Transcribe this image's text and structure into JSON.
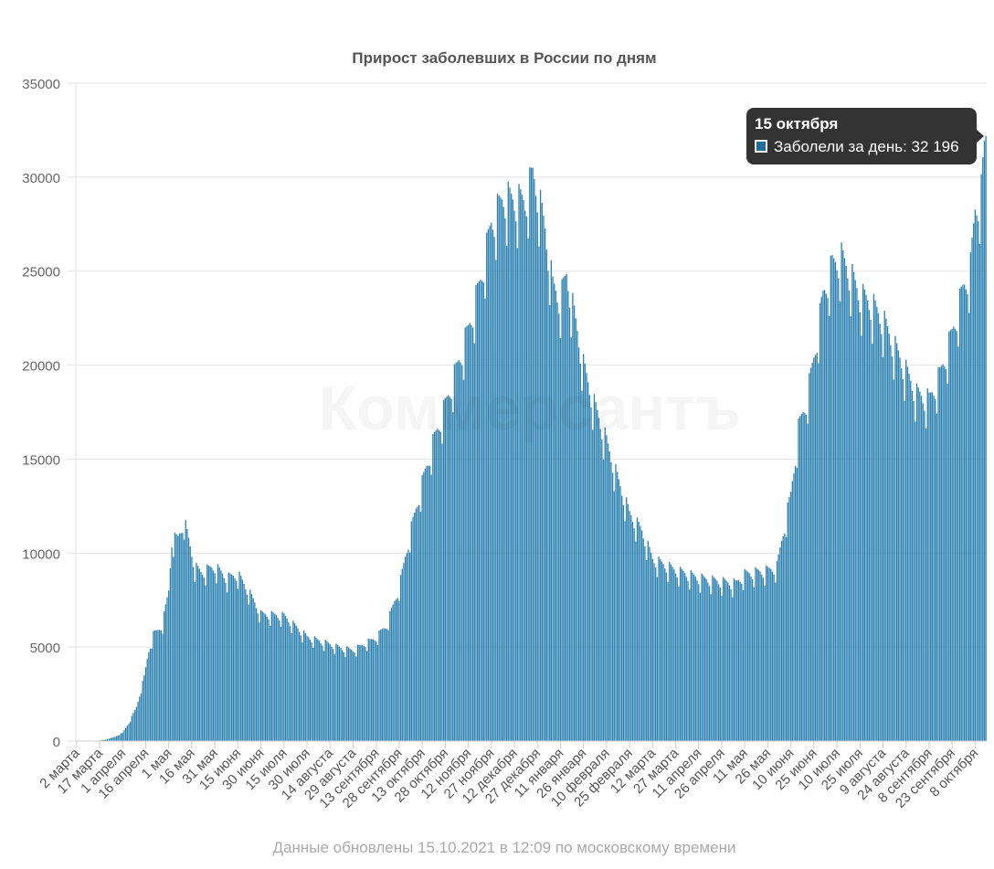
{
  "chart_data": {
    "type": "bar",
    "title": "Прирост заболевших в России по дням",
    "series": [
      {
        "name": "Заболели за день"
      }
    ],
    "ylim": [
      0,
      35000
    ],
    "yticks": [
      0,
      5000,
      10000,
      15000,
      20000,
      25000,
      30000,
      35000
    ],
    "grid": true,
    "bar_color": "#2a80b0",
    "xticklabels": [
      "2 марта",
      "17 марта",
      "1 апреля",
      "16 апреля",
      "1 мая",
      "16 мая",
      "31 мая",
      "15 июня",
      "30 июня",
      "15 июля",
      "30 июля",
      "14 августа",
      "29 августа",
      "13 сентября",
      "28 сентября",
      "13 октября",
      "28 октября",
      "12 ноября",
      "27 ноября",
      "12 декабря",
      "27 декабря",
      "11 января",
      "26 января",
      "10 февраля",
      "25 февраля",
      "12 марта",
      "27 марта",
      "11 апреля",
      "26 апреля",
      "11 мая",
      "26 мая",
      "10 июня",
      "25 июня",
      "10 июля",
      "25 июля",
      "9 августа",
      "24 августа",
      "8 сентября",
      "23 сентября",
      "8 октября"
    ],
    "x_start": "2020-03-02",
    "x_end": "2021-10-15",
    "anchors": [
      [
        "2020-03-02",
        3
      ],
      [
        "2020-03-15",
        6
      ],
      [
        "2020-03-20",
        60
      ],
      [
        "2020-03-27",
        220
      ],
      [
        "2020-04-01",
        440
      ],
      [
        "2020-04-05",
        950
      ],
      [
        "2020-04-10",
        1800
      ],
      [
        "2020-04-15",
        3390
      ],
      [
        "2020-04-18",
        4780
      ],
      [
        "2020-04-21",
        5640
      ],
      [
        "2020-04-24",
        5850
      ],
      [
        "2020-04-27",
        6200
      ],
      [
        "2020-05-01",
        7930
      ],
      [
        "2020-05-03",
        10630
      ],
      [
        "2020-05-07",
        10700
      ],
      [
        "2020-05-11",
        11650
      ],
      [
        "2020-05-14",
        10600
      ],
      [
        "2020-05-18",
        9200
      ],
      [
        "2020-05-22",
        8900
      ],
      [
        "2020-05-31",
        9200
      ],
      [
        "2020-06-08",
        8600
      ],
      [
        "2020-06-15",
        8800
      ],
      [
        "2020-06-22",
        7900
      ],
      [
        "2020-06-30",
        6700
      ],
      [
        "2020-07-15",
        6600
      ],
      [
        "2020-07-30",
        5500
      ],
      [
        "2020-08-14",
        5100
      ],
      [
        "2020-08-21",
        4900
      ],
      [
        "2020-08-29",
        4800
      ],
      [
        "2020-09-05",
        5100
      ],
      [
        "2020-09-13",
        5450
      ],
      [
        "2020-09-20",
        6150
      ],
      [
        "2020-09-28",
        8100
      ],
      [
        "2020-10-05",
        10900
      ],
      [
        "2020-10-13",
        13600
      ],
      [
        "2020-10-20",
        15700
      ],
      [
        "2020-10-28",
        17700
      ],
      [
        "2020-11-05",
        19800
      ],
      [
        "2020-11-12",
        21700
      ],
      [
        "2020-11-20",
        24300
      ],
      [
        "2020-11-27",
        27300
      ],
      [
        "2020-12-05",
        28700
      ],
      [
        "2020-12-12",
        28500
      ],
      [
        "2020-12-19",
        28500
      ],
      [
        "2020-12-24",
        29900
      ],
      [
        "2020-12-27",
        29000
      ],
      [
        "2021-01-01",
        27000
      ],
      [
        "2021-01-06",
        24000
      ],
      [
        "2021-01-11",
        23300
      ],
      [
        "2021-01-15",
        24600
      ],
      [
        "2021-01-20",
        22500
      ],
      [
        "2021-01-26",
        19800
      ],
      [
        "2021-02-01",
        18000
      ],
      [
        "2021-02-10",
        15800
      ],
      [
        "2021-02-17",
        13900
      ],
      [
        "2021-02-25",
        12000
      ],
      [
        "2021-03-05",
        11100
      ],
      [
        "2021-03-12",
        9600
      ],
      [
        "2021-03-27",
        9000
      ],
      [
        "2021-04-11",
        8600
      ],
      [
        "2021-04-26",
        8400
      ],
      [
        "2021-05-05",
        8300
      ],
      [
        "2021-05-11",
        8800
      ],
      [
        "2021-05-26",
        9000
      ],
      [
        "2021-06-01",
        9200
      ],
      [
        "2021-06-05",
        11000
      ],
      [
        "2021-06-10",
        13000
      ],
      [
        "2021-06-15",
        16500
      ],
      [
        "2021-06-20",
        17900
      ],
      [
        "2021-06-25",
        20200
      ],
      [
        "2021-07-01",
        23500
      ],
      [
        "2021-07-07",
        25100
      ],
      [
        "2021-07-13",
        25500
      ],
      [
        "2021-07-20",
        24400
      ],
      [
        "2021-07-25",
        23500
      ],
      [
        "2021-08-01",
        23100
      ],
      [
        "2021-08-09",
        22200
      ],
      [
        "2021-08-16",
        20900
      ],
      [
        "2021-08-24",
        19500
      ],
      [
        "2021-08-31",
        18300
      ],
      [
        "2021-09-08",
        18000
      ],
      [
        "2021-09-15",
        19300
      ],
      [
        "2021-09-23",
        21500
      ],
      [
        "2021-09-30",
        23800
      ],
      [
        "2021-10-05",
        25000
      ],
      [
        "2021-10-08",
        28000
      ],
      [
        "2021-10-12",
        29000
      ],
      [
        "2021-10-14",
        31300
      ],
      [
        "2021-10-15",
        32196
      ]
    ],
    "tooltip": {
      "date": "15 октября",
      "series_label": "Заболели за день",
      "value_text": "32 196",
      "value": 32196
    }
  },
  "watermark": "Коммерсантъ",
  "footer": "Данные обновлены 15.10.2021 в 12:09 по московскому времени"
}
